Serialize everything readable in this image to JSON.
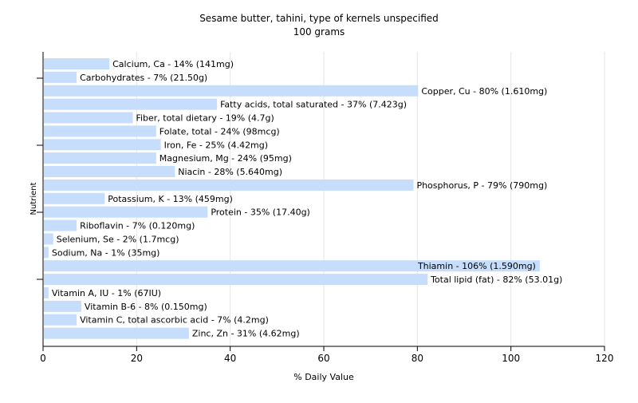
{
  "chart_data": {
    "type": "bar",
    "orientation": "horizontal",
    "title": "Sesame butter, tahini, type of kernels unspecified",
    "subtitle": "100 grams",
    "xlabel": "% Daily Value",
    "ylabel": "Nutrient",
    "xlim": [
      0,
      120
    ],
    "xticks": [
      "0",
      "20",
      "40",
      "60",
      "80",
      "100",
      "120"
    ],
    "grid": true,
    "bar_color": "#c6ddfb",
    "categories": [
      "Calcium, Ca",
      "Carbohydrates",
      "Copper, Cu",
      "Fatty acids, total saturated",
      "Fiber, total dietary",
      "Folate, total",
      "Iron, Fe",
      "Magnesium, Mg",
      "Niacin",
      "Phosphorus, P",
      "Potassium, K",
      "Protein",
      "Riboflavin",
      "Selenium, Se",
      "Sodium, Na",
      "Thiamin",
      "Total lipid (fat)",
      "Vitamin A, IU",
      "Vitamin B-6",
      "Vitamin C, total ascorbic acid",
      "Zinc, Zn"
    ],
    "values": [
      14,
      7,
      80,
      37,
      19,
      24,
      25,
      24,
      28,
      79,
      13,
      35,
      7,
      2,
      1,
      106,
      82,
      1,
      8,
      7,
      31
    ],
    "labels": [
      "Calcium, Ca - 14% (141mg)",
      "Carbohydrates - 7% (21.50g)",
      "Copper, Cu - 80% (1.610mg)",
      "Fatty acids, total saturated - 37% (7.423g)",
      "Fiber, total dietary - 19% (4.7g)",
      "Folate, total - 24% (98mcg)",
      "Iron, Fe - 25% (4.42mg)",
      "Magnesium, Mg - 24% (95mg)",
      "Niacin - 28% (5.640mg)",
      "Phosphorus, P - 79% (790mg)",
      "Potassium, K - 13% (459mg)",
      "Protein - 35% (17.40g)",
      "Riboflavin - 7% (0.120mg)",
      "Selenium, Se - 2% (1.7mcg)",
      "Sodium, Na - 1% (35mg)",
      "Thiamin - 106% (1.590mg)",
      "Total lipid (fat) - 82% (53.01g)",
      "Vitamin A, IU - 1% (67IU)",
      "Vitamin B-6 - 8% (0.150mg)",
      "Vitamin C, total ascorbic acid - 7% (4.2mg)",
      "Zinc, Zn - 31% (4.62mg)"
    ]
  }
}
